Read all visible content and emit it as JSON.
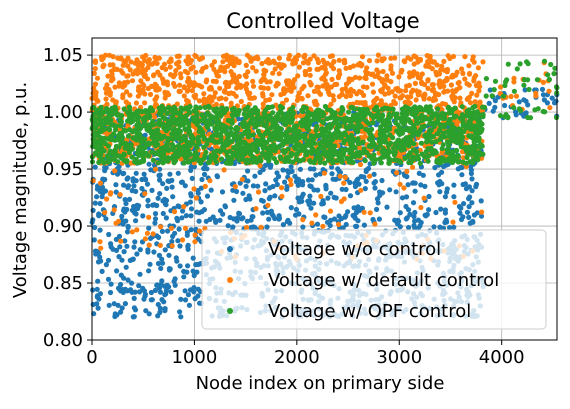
{
  "chart_data": {
    "type": "scatter",
    "title": "Controlled Voltage",
    "xlabel": "Node index on primary side",
    "ylabel": "Voltage magnitude, p.u.",
    "xlim": [
      0,
      4540
    ],
    "ylim": [
      0.8,
      1.065
    ],
    "xticks": [
      0,
      1000,
      2000,
      3000,
      4000
    ],
    "xtick_labels": [
      "0",
      "1000",
      "2000",
      "3000",
      "4000"
    ],
    "yticks": [
      0.8,
      0.85,
      0.9,
      0.95,
      1.0,
      1.05
    ],
    "ytick_labels": [
      "0.80",
      "0.85",
      "0.90",
      "0.95",
      "1.00",
      "1.05"
    ],
    "grid": true,
    "legend_position": "lower-right",
    "series": [
      {
        "name": "Voltage w/o control",
        "color": "#1f77b4",
        "bands": [
          {
            "x": [
              0,
              3820
            ],
            "y": [
              0.82,
              1.0
            ],
            "count": 1700
          },
          {
            "x": [
              3820,
              4540
            ],
            "y": [
              0.995,
              1.02
            ],
            "count": 40
          }
        ]
      },
      {
        "name": "Voltage w/ default control",
        "color": "#ff7f0e",
        "bands": [
          {
            "x": [
              0,
              3820
            ],
            "y": [
              0.955,
              1.05
            ],
            "count": 1600
          },
          {
            "x": [
              0,
              3820
            ],
            "y": [
              0.87,
              0.955
            ],
            "count": 110
          },
          {
            "x": [
              3820,
              4540
            ],
            "y": [
              1.0,
              1.045
            ],
            "count": 20
          }
        ]
      },
      {
        "name": "Voltage w/ OPF control",
        "color": "#2ca02c",
        "bands": [
          {
            "x": [
              0,
              3820
            ],
            "y": [
              0.955,
              1.005
            ],
            "count": 1700
          },
          {
            "x": [
              3820,
              4540
            ],
            "y": [
              0.995,
              1.045
            ],
            "count": 45
          }
        ]
      }
    ]
  }
}
